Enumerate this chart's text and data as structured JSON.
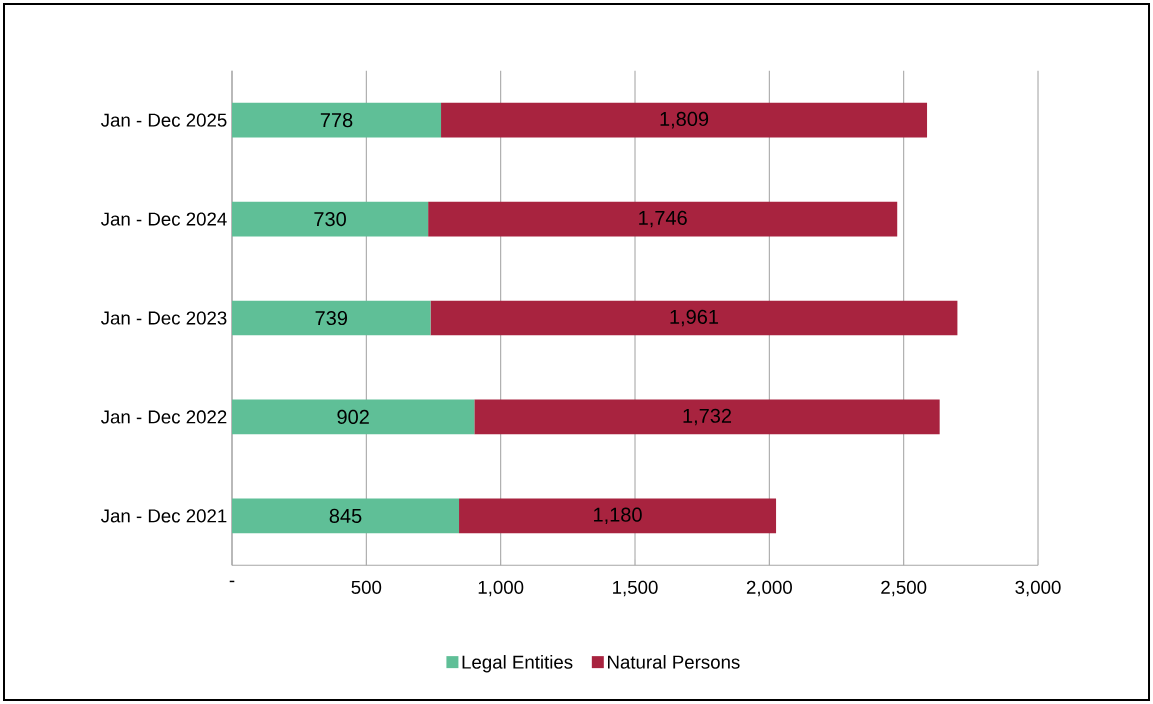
{
  "chart_data": {
    "type": "bar",
    "orientation": "horizontal",
    "stacked": true,
    "categories": [
      "Jan - Dec 2025",
      "Jan - Dec 2024",
      "Jan - Dec 2023",
      "Jan - Dec 2022",
      "Jan - Dec 2021"
    ],
    "series": [
      {
        "name": "Legal Entities",
        "color": "#5fbf97",
        "values": [
          778,
          730,
          739,
          902,
          845
        ],
        "value_labels": [
          "778",
          "730",
          "739",
          "902",
          "845"
        ]
      },
      {
        "name": "Natural Persons",
        "color": "#a8233f",
        "values": [
          1809,
          1746,
          1961,
          1732,
          1180
        ],
        "value_labels": [
          "1,809",
          "1,746",
          "1,961",
          "1,732",
          "1,180"
        ]
      }
    ],
    "xlim": [
      0,
      3000
    ],
    "xticks": [
      {
        "value": 0,
        "label": "-"
      },
      {
        "value": 500,
        "label": "500"
      },
      {
        "value": 1000,
        "label": "1,000"
      },
      {
        "value": 1500,
        "label": "1,500"
      },
      {
        "value": 2000,
        "label": "2,000"
      },
      {
        "value": 2500,
        "label": "2,500"
      },
      {
        "value": 3000,
        "label": "3,000"
      }
    ],
    "grid": "x",
    "legend": "bottom"
  }
}
